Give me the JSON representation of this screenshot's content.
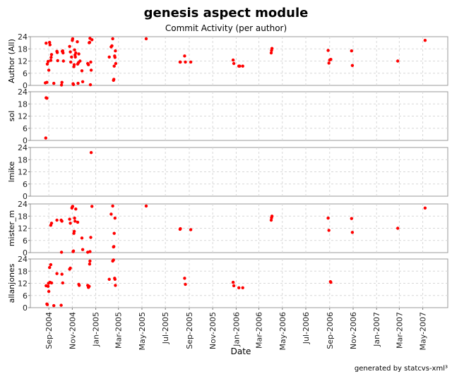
{
  "chart_data": {
    "type": "scatter",
    "title": "genesis aspect module",
    "subtitle": "Commit Activity (per author)",
    "xlabel": "Date",
    "footer": "generated by statcvs-xml³",
    "x_range": [
      "2004-07-15",
      "2007-07-05"
    ],
    "x_ticks": [
      "Sep-2004",
      "Nov-2004",
      "Jan-2005",
      "Mar-2005",
      "May-2005",
      "Jul-2005",
      "Sep-2005",
      "Nov-2005",
      "Jan-2006",
      "Mar-2006",
      "May-2006",
      "Jul-2006",
      "Sep-2006",
      "Nov-2006",
      "Jan-2007",
      "Mar-2007",
      "May-2007"
    ],
    "tick_dates": [
      "2004-09-01",
      "2004-11-01",
      "2005-01-01",
      "2005-03-01",
      "2005-05-01",
      "2005-07-01",
      "2005-09-01",
      "2005-11-01",
      "2006-01-01",
      "2006-03-01",
      "2006-05-01",
      "2006-07-01",
      "2006-09-01",
      "2006-11-01",
      "2007-01-01",
      "2007-03-01",
      "2007-05-01"
    ],
    "y_ticks": [
      0,
      6,
      12,
      18,
      24
    ],
    "ylim": [
      0,
      24
    ],
    "grid": true,
    "point_color": "#ff0000",
    "panels": [
      {
        "name": "Author (All)",
        "points": [
          [
            "2004-08-23",
            1.2
          ],
          [
            "2004-08-25",
            20.8
          ],
          [
            "2004-08-27",
            1.5
          ],
          [
            "2004-08-28",
            10.5
          ],
          [
            "2004-08-30",
            11.8
          ],
          [
            "2004-09-01",
            7.5
          ],
          [
            "2004-09-03",
            21.2
          ],
          [
            "2004-09-04",
            20.0
          ],
          [
            "2004-09-06",
            12.3
          ],
          [
            "2004-09-07",
            13.8
          ],
          [
            "2004-09-08",
            15.2
          ],
          [
            "2004-09-14",
            1.0
          ],
          [
            "2004-09-22",
            16.8
          ],
          [
            "2004-09-23",
            16.2
          ],
          [
            "2004-09-24",
            12.2
          ],
          [
            "2004-10-04",
            0.2
          ],
          [
            "2004-10-05",
            1.5
          ],
          [
            "2004-10-06",
            16.8
          ],
          [
            "2004-10-07",
            17.0
          ],
          [
            "2004-10-08",
            16.0
          ],
          [
            "2004-10-09",
            12.0
          ],
          [
            "2004-10-25",
            19.2
          ],
          [
            "2004-10-27",
            16.5
          ],
          [
            "2004-10-28",
            11.5
          ],
          [
            "2004-10-30",
            14.0
          ],
          [
            "2004-11-01",
            22.2
          ],
          [
            "2004-11-02",
            23.0
          ],
          [
            "2004-11-03",
            0.8
          ],
          [
            "2004-11-04",
            0.4
          ],
          [
            "2004-11-05",
            9.2
          ],
          [
            "2004-11-06",
            10.2
          ],
          [
            "2004-11-07",
            17.5
          ],
          [
            "2004-11-08",
            15.0
          ],
          [
            "2004-11-09",
            14.0
          ],
          [
            "2004-11-10",
            16.0
          ],
          [
            "2004-11-14",
            21.5
          ],
          [
            "2004-11-15",
            10.5
          ],
          [
            "2004-11-16",
            1.0
          ],
          [
            "2004-11-17",
            11.2
          ],
          [
            "2004-11-18",
            15.5
          ],
          [
            "2004-11-21",
            12.0
          ],
          [
            "2004-11-26",
            7.2
          ],
          [
            "2004-11-28",
            1.8
          ],
          [
            "2004-12-11",
            10.8
          ],
          [
            "2004-12-13",
            10.2
          ],
          [
            "2004-12-15",
            21.0
          ],
          [
            "2004-12-16",
            21.2
          ],
          [
            "2004-12-17",
            23.2
          ],
          [
            "2004-12-18",
            0.3
          ],
          [
            "2004-12-19",
            11.5
          ],
          [
            "2004-12-20",
            7.5
          ],
          [
            "2004-12-22",
            22.5
          ],
          [
            "2005-02-05",
            14.0
          ],
          [
            "2005-02-10",
            19.0
          ],
          [
            "2005-02-12",
            19.5
          ],
          [
            "2005-02-14",
            23.0
          ],
          [
            "2005-02-16",
            2.5
          ],
          [
            "2005-02-17",
            3.0
          ],
          [
            "2005-02-18",
            9.5
          ],
          [
            "2005-02-19",
            14.5
          ],
          [
            "2005-02-20",
            13.8
          ],
          [
            "2005-02-21",
            17.0
          ],
          [
            "2005-02-22",
            10.8
          ],
          [
            "2005-05-12",
            23.0
          ],
          [
            "2005-08-08",
            11.5
          ],
          [
            "2005-08-09",
            11.5
          ],
          [
            "2005-08-20",
            14.5
          ],
          [
            "2005-08-22",
            11.5
          ],
          [
            "2005-09-05",
            11.5
          ],
          [
            "2005-12-24",
            12.5
          ],
          [
            "2005-12-26",
            10.8
          ],
          [
            "2006-01-08",
            9.5
          ],
          [
            "2006-01-10",
            9.5
          ],
          [
            "2006-01-18",
            9.5
          ],
          [
            "2006-04-02",
            16.0
          ],
          [
            "2006-04-03",
            17.2
          ],
          [
            "2006-04-04",
            18.2
          ],
          [
            "2006-08-28",
            17.2
          ],
          [
            "2006-08-30",
            11.0
          ],
          [
            "2006-09-01",
            12.5
          ],
          [
            "2006-09-04",
            12.8
          ],
          [
            "2006-10-28",
            17.0
          ],
          [
            "2006-10-30",
            9.8
          ],
          [
            "2007-02-25",
            12.0
          ],
          [
            "2007-05-07",
            22.2
          ]
        ]
      },
      {
        "name": "sol",
        "points": [
          [
            "2004-08-24",
            1.2
          ],
          [
            "2004-08-25",
            21.0
          ],
          [
            "2004-08-27",
            20.8
          ]
        ]
      },
      {
        "name": "lmike",
        "points": [
          [
            "2004-12-20",
            21.5
          ]
        ]
      },
      {
        "name": "mister_m",
        "points": [
          [
            "2004-09-06",
            13.5
          ],
          [
            "2004-09-08",
            14.5
          ],
          [
            "2004-09-22",
            16.0
          ],
          [
            "2004-10-03",
            16.0
          ],
          [
            "2004-10-05",
            15.5
          ],
          [
            "2004-10-25",
            16.5
          ],
          [
            "2004-10-27",
            14.5
          ],
          [
            "2004-10-31",
            22.0
          ],
          [
            "2004-11-01",
            22.5
          ],
          [
            "2004-11-02",
            22.8
          ],
          [
            "2004-11-03",
            0.5
          ],
          [
            "2004-11-04",
            0.8
          ],
          [
            "2004-11-05",
            9.5
          ],
          [
            "2004-11-06",
            10.5
          ],
          [
            "2004-11-07",
            17.0
          ],
          [
            "2004-11-08",
            15.5
          ],
          [
            "2004-11-10",
            21.5
          ],
          [
            "2004-11-15",
            15.0
          ],
          [
            "2004-10-04",
            0.2
          ],
          [
            "2004-11-26",
            7.2
          ],
          [
            "2004-11-28",
            1.5
          ],
          [
            "2004-12-11",
            0.2
          ],
          [
            "2004-12-17",
            0.5
          ],
          [
            "2004-12-19",
            7.5
          ],
          [
            "2004-12-22",
            22.8
          ],
          [
            "2005-02-10",
            19.0
          ],
          [
            "2005-02-14",
            23.0
          ],
          [
            "2005-02-16",
            2.8
          ],
          [
            "2005-02-17",
            3.0
          ],
          [
            "2005-02-18",
            9.5
          ],
          [
            "2005-02-20",
            17.0
          ],
          [
            "2005-05-12",
            23.0
          ],
          [
            "2005-08-08",
            11.5
          ],
          [
            "2005-08-09",
            11.8
          ],
          [
            "2005-09-05",
            11.3
          ],
          [
            "2006-04-02",
            16.0
          ],
          [
            "2006-04-03",
            17.2
          ],
          [
            "2006-04-04",
            18.0
          ],
          [
            "2006-08-28",
            17.0
          ],
          [
            "2006-08-30",
            11.0
          ],
          [
            "2006-10-28",
            16.8
          ],
          [
            "2006-10-30",
            10.0
          ],
          [
            "2007-02-25",
            12.0
          ],
          [
            "2007-05-07",
            22.0
          ]
        ]
      },
      {
        "name": "allanjones",
        "points": [
          [
            "2004-08-25",
            10.8
          ],
          [
            "2004-08-27",
            1.8
          ],
          [
            "2004-08-28",
            1.5
          ],
          [
            "2004-08-30",
            10.5
          ],
          [
            "2004-08-31",
            12.0
          ],
          [
            "2004-09-01",
            8.0
          ],
          [
            "2004-09-03",
            19.8
          ],
          [
            "2004-09-04",
            12.5
          ],
          [
            "2004-09-06",
            21.2
          ],
          [
            "2004-09-08",
            12.2
          ],
          [
            "2004-09-14",
            1.0
          ],
          [
            "2004-09-22",
            16.8
          ],
          [
            "2004-10-03",
            1.2
          ],
          [
            "2004-10-05",
            16.5
          ],
          [
            "2004-10-07",
            12.2
          ],
          [
            "2004-10-25",
            19.0
          ],
          [
            "2004-10-27",
            19.5
          ],
          [
            "2004-11-18",
            11.5
          ],
          [
            "2004-11-19",
            11.0
          ],
          [
            "2004-12-11",
            11.0
          ],
          [
            "2004-12-13",
            10.0
          ],
          [
            "2004-12-15",
            10.5
          ],
          [
            "2004-12-16",
            21.5
          ],
          [
            "2004-12-17",
            23.0
          ],
          [
            "2005-02-05",
            14.0
          ],
          [
            "2005-02-14",
            23.0
          ],
          [
            "2005-02-16",
            23.5
          ],
          [
            "2005-02-19",
            14.5
          ],
          [
            "2005-02-20",
            14.0
          ],
          [
            "2005-02-21",
            11.0
          ],
          [
            "2005-08-20",
            14.5
          ],
          [
            "2005-08-22",
            11.5
          ],
          [
            "2005-12-24",
            12.5
          ],
          [
            "2005-12-26",
            10.8
          ],
          [
            "2006-01-08",
            9.8
          ],
          [
            "2006-01-18",
            9.8
          ],
          [
            "2006-09-03",
            12.8
          ],
          [
            "2006-09-04",
            12.5
          ]
        ]
      }
    ]
  }
}
